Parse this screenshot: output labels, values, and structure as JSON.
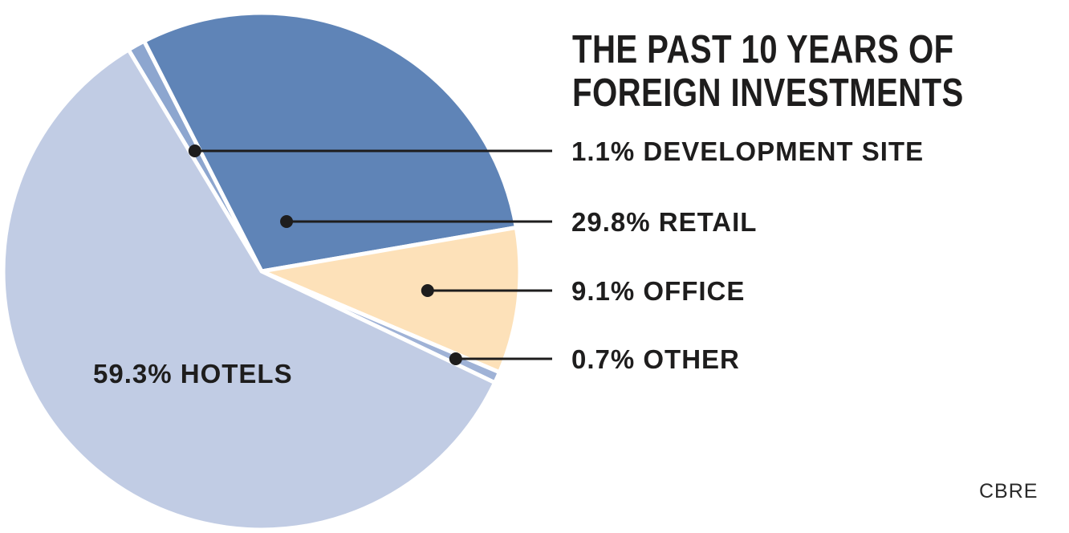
{
  "chart_data": {
    "type": "pie",
    "title_lines": [
      "THE PAST 10 YEARS OF",
      "FOREIGN INVESTMENTS"
    ],
    "source": "CBRE",
    "slices": [
      {
        "label": "1.1% DEVELOPMENT SITE",
        "category": "DEVELOPMENT SITE",
        "value": 1.1,
        "color": "#8da6cf"
      },
      {
        "label": "29.8% RETAIL",
        "category": "RETAIL",
        "value": 29.8,
        "color": "#5f84b7"
      },
      {
        "label": "9.1% OFFICE",
        "category": "OFFICE",
        "value": 9.1,
        "color": "#fde1b9"
      },
      {
        "label": "0.7% OTHER",
        "category": "OTHER",
        "value": 0.7,
        "color": "#9fb2d6"
      },
      {
        "label": "59.3% HOTELS",
        "category": "HOTELS",
        "value": 59.3,
        "color": "#c1cce4"
      }
    ],
    "legend": "callout labels on the right",
    "label_color": "#1e1d1d"
  }
}
